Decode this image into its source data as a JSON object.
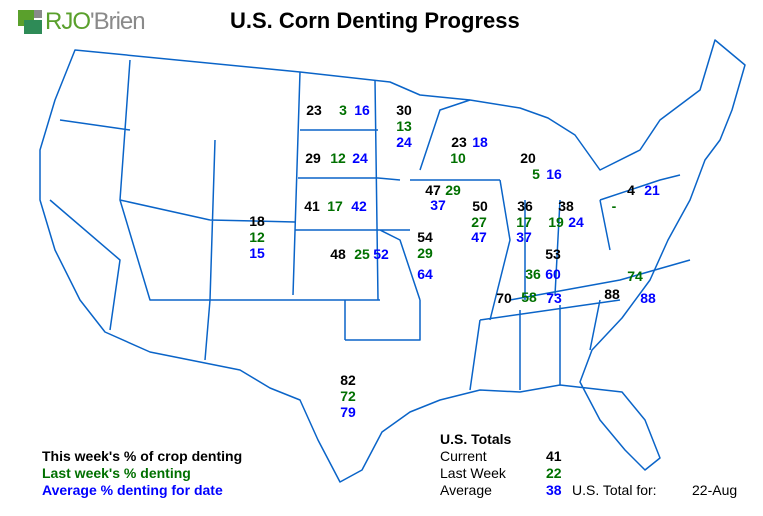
{
  "logo": {
    "text_green": "RJO",
    "text_gray": "'Brien"
  },
  "title": "U.S. Corn Denting Progress",
  "colors": {
    "current": "#000000",
    "last_week": "#007000",
    "average": "#0000ff",
    "border": "#0a64c8"
  },
  "states": {
    "ND": {
      "current": "23",
      "last_week": "3",
      "average": "16"
    },
    "MN": {
      "current": "30",
      "last_week": "13",
      "average": "24"
    },
    "SD": {
      "current": "29",
      "last_week": "12",
      "average": "24"
    },
    "NE": {
      "current": "41",
      "last_week": "17",
      "average": "42"
    },
    "CO": {
      "current": "18",
      "last_week": "12",
      "average": "15"
    },
    "KS": {
      "current": "48",
      "last_week": "25",
      "average": "52"
    },
    "IA": {
      "current": "47",
      "last_week": "29",
      "average": "37"
    },
    "MO": {
      "current": "54",
      "last_week": "29",
      "average": "64"
    },
    "WI": {
      "current": "23",
      "last_week": "10",
      "average": "18"
    },
    "MI": {
      "current": "20",
      "last_week": "5",
      "average": "16"
    },
    "IL": {
      "current": "50",
      "last_week": "27",
      "average": "47"
    },
    "IN": {
      "current": "36",
      "last_week": "17",
      "average": "37"
    },
    "OH": {
      "current": "38",
      "last_week": "19",
      "average": "24"
    },
    "PA": {
      "current": "4",
      "last_week": "-",
      "average": "21"
    },
    "KY": {
      "current": "53",
      "last_week": "36",
      "average": "60"
    },
    "TN": {
      "current": "70",
      "last_week": "58",
      "average": "73"
    },
    "NC": {
      "current": "88",
      "last_week": "74",
      "average": "88"
    },
    "TX": {
      "current": "82",
      "last_week": "72",
      "average": "79"
    }
  },
  "legend": {
    "current": "This week's % of crop denting",
    "last_week": "Last week's % denting",
    "average": "Average % denting for date"
  },
  "totals": {
    "heading": "U.S. Totals",
    "current_label": "Current",
    "current": "41",
    "last_week_label": "Last Week",
    "last_week": "22",
    "average_label": "Average",
    "average": "38",
    "total_for_label": "U.S. Total for:",
    "date": "22-Aug"
  }
}
